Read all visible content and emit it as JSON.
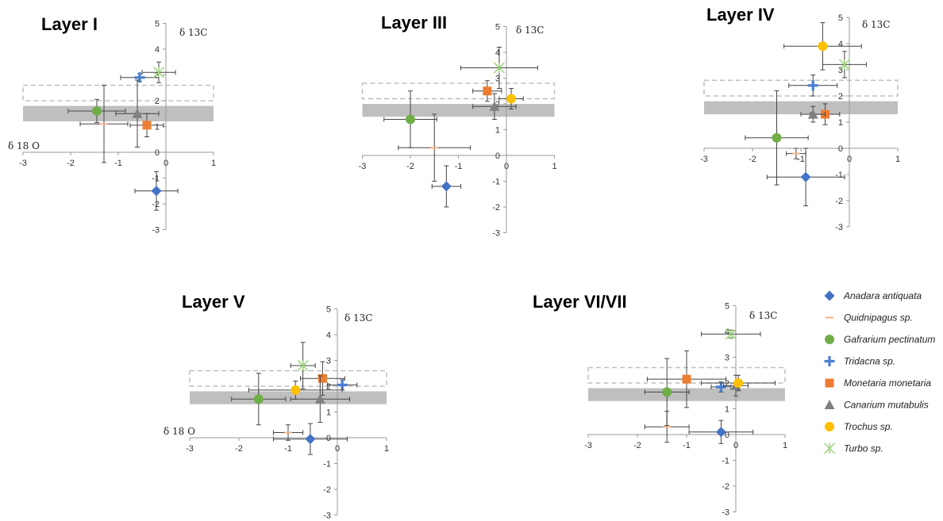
{
  "colors": {
    "Anadara antiquata": "#4472C4",
    "Quidnipagus sp.": "#F4B183",
    "Gafrarium pectinatum": "#70AD47",
    "Tridacna sp.": "#4A7FD0",
    "Monetaria monetaria": "#ED7D31",
    "Canarium mutabulis": "#808080",
    "Trochus sp.": "#FFC000",
    "Turbo sp.": "#9BD37B",
    "band_solid": "#BFBFBF",
    "band_dashed": "#BFBFBF"
  },
  "legend": [
    {
      "name": "Anadara antiquata",
      "marker": "diamond"
    },
    {
      "name": "Quidnipagus sp.",
      "marker": "dash"
    },
    {
      "name": "Gafrarium pectinatum",
      "marker": "circle"
    },
    {
      "name": "Tridacna sp.",
      "marker": "plus"
    },
    {
      "name": "Monetaria monetaria",
      "marker": "square"
    },
    {
      "name": "Canarium mutabulis",
      "marker": "triangle"
    },
    {
      "name": "Trochus sp.",
      "marker": "circle"
    },
    {
      "name": "Turbo sp.",
      "marker": "star"
    }
  ],
  "chart_data": [
    {
      "type": "scatter",
      "title": "Layer I",
      "xlabel": "δ 18 O",
      "ylabel": "δ 13C",
      "xlim": [
        -3,
        1
      ],
      "ylim": [
        -3,
        5
      ],
      "xticks": [
        "-3",
        "-2",
        "-1",
        "0",
        "1"
      ],
      "yticks": [
        "-3",
        "-2",
        "-1",
        "0",
        "1",
        "2",
        "3",
        "4",
        "5"
      ],
      "bands": {
        "solid": [
          1.2,
          1.8
        ],
        "dashed": [
          2.0,
          2.6
        ]
      },
      "points": [
        {
          "series": "Anadara antiquata",
          "x": -0.2,
          "y": -1.5,
          "xerr": 0.45,
          "yerr": 0.75
        },
        {
          "series": "Quidnipagus sp.",
          "x": -1.3,
          "y": 1.1,
          "xerr": 0.5,
          "yerr": 1.5
        },
        {
          "series": "Gafrarium pectinatum",
          "x": -1.45,
          "y": 1.6,
          "xerr": 0.6,
          "yerr": 0.45
        },
        {
          "series": "Tridacna sp.",
          "x": -0.55,
          "y": 2.9,
          "xerr": 0.4,
          "yerr": 0.15
        },
        {
          "series": "Monetaria monetaria",
          "x": -0.4,
          "y": 1.05,
          "xerr": 0.35,
          "yerr": 0.45
        },
        {
          "series": "Canarium mutabulis",
          "x": -0.6,
          "y": 1.5,
          "xerr": 0.45,
          "yerr": 1.3
        },
        {
          "series": "Turbo sp.",
          "x": -0.15,
          "y": 3.1,
          "xerr": 0.35,
          "yerr": 0.4
        }
      ]
    },
    {
      "type": "scatter",
      "title": "Layer III",
      "xlabel": "",
      "ylabel": "δ 13C",
      "xlim": [
        -3,
        1
      ],
      "ylim": [
        -3,
        5
      ],
      "xticks": [
        "-3",
        "-2",
        "-1",
        "0",
        "1"
      ],
      "yticks": [
        "-3",
        "-2",
        "-1",
        "0",
        "1",
        "2",
        "3",
        "4",
        "5"
      ],
      "bands": {
        "solid": [
          1.5,
          2.0
        ],
        "dashed": [
          2.2,
          2.8
        ]
      },
      "points": [
        {
          "series": "Anadara antiquata",
          "x": -1.25,
          "y": -1.2,
          "xerr": 0.3,
          "yerr": 0.8
        },
        {
          "series": "Quidnipagus sp.",
          "x": -1.5,
          "y": 0.3,
          "xerr": 0.75,
          "yerr": 1.3
        },
        {
          "series": "Gafrarium pectinatum",
          "x": -2.0,
          "y": 1.4,
          "xerr": 0.55,
          "yerr": 1.1
        },
        {
          "series": "Monetaria monetaria",
          "x": -0.4,
          "y": 2.5,
          "xerr": 0.3,
          "yerr": 0.4
        },
        {
          "series": "Canarium mutabulis",
          "x": -0.25,
          "y": 1.9,
          "xerr": 0.45,
          "yerr": 0.5
        },
        {
          "series": "Trochus sp.",
          "x": 0.1,
          "y": 2.2,
          "xerr": 0.25,
          "yerr": 0.4
        },
        {
          "series": "Turbo sp.",
          "x": -0.15,
          "y": 3.4,
          "xerr": 0.8,
          "yerr": 0.8
        }
      ]
    },
    {
      "type": "scatter",
      "title": "Layer IV",
      "xlabel": "",
      "ylabel": "δ 13C",
      "xlim": [
        -3,
        1
      ],
      "ylim": [
        -3,
        5
      ],
      "xticks": [
        "-3",
        "-2",
        "-1",
        "0",
        "1"
      ],
      "yticks": [
        "-3",
        "-2",
        "-1",
        "0",
        "1",
        "2",
        "3",
        "4",
        "5"
      ],
      "bands": {
        "solid": [
          1.3,
          1.8
        ],
        "dashed": [
          2.0,
          2.6
        ]
      },
      "points": [
        {
          "series": "Anadara antiquata",
          "x": -0.9,
          "y": -1.1,
          "xerr": 0.8,
          "yerr": 1.1
        },
        {
          "series": "Quidnipagus sp.",
          "x": -1.1,
          "y": -0.2,
          "xerr": 0.2,
          "yerr": 0.2
        },
        {
          "series": "Gafrarium pectinatum",
          "x": -1.5,
          "y": 0.4,
          "xerr": 0.65,
          "yerr": 1.8
        },
        {
          "series": "Tridacna sp.",
          "x": -0.75,
          "y": 2.4,
          "xerr": 0.5,
          "yerr": 0.4
        },
        {
          "series": "Monetaria monetaria",
          "x": -0.5,
          "y": 1.3,
          "xerr": 0.3,
          "yerr": 0.4
        },
        {
          "series": "Canarium mutabulis",
          "x": -0.75,
          "y": 1.3,
          "xerr": 0.25,
          "yerr": 0.3
        },
        {
          "series": "Trochus sp.",
          "x": -0.55,
          "y": 3.9,
          "xerr": 0.8,
          "yerr": 0.9
        },
        {
          "series": "Turbo sp.",
          "x": -0.1,
          "y": 3.2,
          "xerr": 0.45,
          "yerr": 0.5
        }
      ]
    },
    {
      "type": "scatter",
      "title": "Layer V",
      "xlabel": "δ 18 O",
      "ylabel": "δ 13C",
      "xlim": [
        -3,
        1
      ],
      "ylim": [
        -3,
        5
      ],
      "xticks": [
        "-3",
        "-2",
        "-1",
        "0",
        "1"
      ],
      "yticks": [
        "-3",
        "-2",
        "-1",
        "0",
        "1",
        "2",
        "3",
        "4",
        "5"
      ],
      "bands": {
        "solid": [
          1.3,
          1.8
        ],
        "dashed": [
          2.0,
          2.6
        ]
      },
      "points": [
        {
          "series": "Anadara antiquata",
          "x": -0.55,
          "y": -0.05,
          "xerr": 0.75,
          "yerr": 0.6
        },
        {
          "series": "Quidnipagus sp.",
          "x": -1.0,
          "y": 0.2,
          "xerr": 0.3,
          "yerr": 0.3
        },
        {
          "series": "Gafrarium pectinatum",
          "x": -1.6,
          "y": 1.5,
          "xerr": 0.55,
          "yerr": 1.0
        },
        {
          "series": "Tridacna sp.",
          "x": 0.1,
          "y": 2.05,
          "xerr": 0.3,
          "yerr": 0.2
        },
        {
          "series": "Monetaria monetaria",
          "x": -0.3,
          "y": 2.3,
          "xerr": 0.45,
          "yerr": 0.65
        },
        {
          "series": "Canarium mutabulis",
          "x": -0.35,
          "y": 1.5,
          "xerr": 0.6,
          "yerr": 0.9
        },
        {
          "series": "Trochus sp.",
          "x": -0.85,
          "y": 1.85,
          "xerr": 0.95,
          "yerr": 0.35
        },
        {
          "series": "Turbo sp.",
          "x": -0.7,
          "y": 2.8,
          "xerr": 0.25,
          "yerr": 0.9
        }
      ]
    },
    {
      "type": "scatter",
      "title": "Layer VI/VII",
      "xlabel": "",
      "ylabel": "δ 13C",
      "xlim": [
        -3,
        1
      ],
      "ylim": [
        -3,
        5
      ],
      "xticks": [
        "-3",
        "-2",
        "-1",
        "0",
        "1"
      ],
      "yticks": [
        "-3",
        "-2",
        "-1",
        "0",
        "1",
        "2",
        "3",
        "4",
        "5"
      ],
      "bands": {
        "solid": [
          1.3,
          1.8
        ],
        "dashed": [
          2.0,
          2.6
        ]
      },
      "points": [
        {
          "series": "Anadara antiquata",
          "x": -0.3,
          "y": 0.1,
          "xerr": 0.65,
          "yerr": 0.45
        },
        {
          "series": "Quidnipagus sp.",
          "x": -1.4,
          "y": 0.3,
          "xerr": 0.45,
          "yerr": 0.6
        },
        {
          "series": "Gafrarium pectinatum",
          "x": -1.4,
          "y": 1.65,
          "xerr": 0.45,
          "yerr": 1.3
        },
        {
          "series": "Tridacna sp.",
          "x": -0.3,
          "y": 1.85,
          "xerr": 0.2,
          "yerr": 0.2
        },
        {
          "series": "Monetaria monetaria",
          "x": -1.0,
          "y": 2.15,
          "xerr": 0.8,
          "yerr": 1.1
        },
        {
          "series": "Canarium mutabulis",
          "x": 0.0,
          "y": 1.9,
          "xerr": 0.25,
          "yerr": 0.4
        },
        {
          "series": "Trochus sp.",
          "x": 0.05,
          "y": 2.0,
          "xerr": 0.75,
          "yerr": 0.3
        },
        {
          "series": "Turbo sp.",
          "x": -0.1,
          "y": 3.9,
          "xerr": 0.6,
          "yerr": 0.15
        }
      ]
    }
  ]
}
